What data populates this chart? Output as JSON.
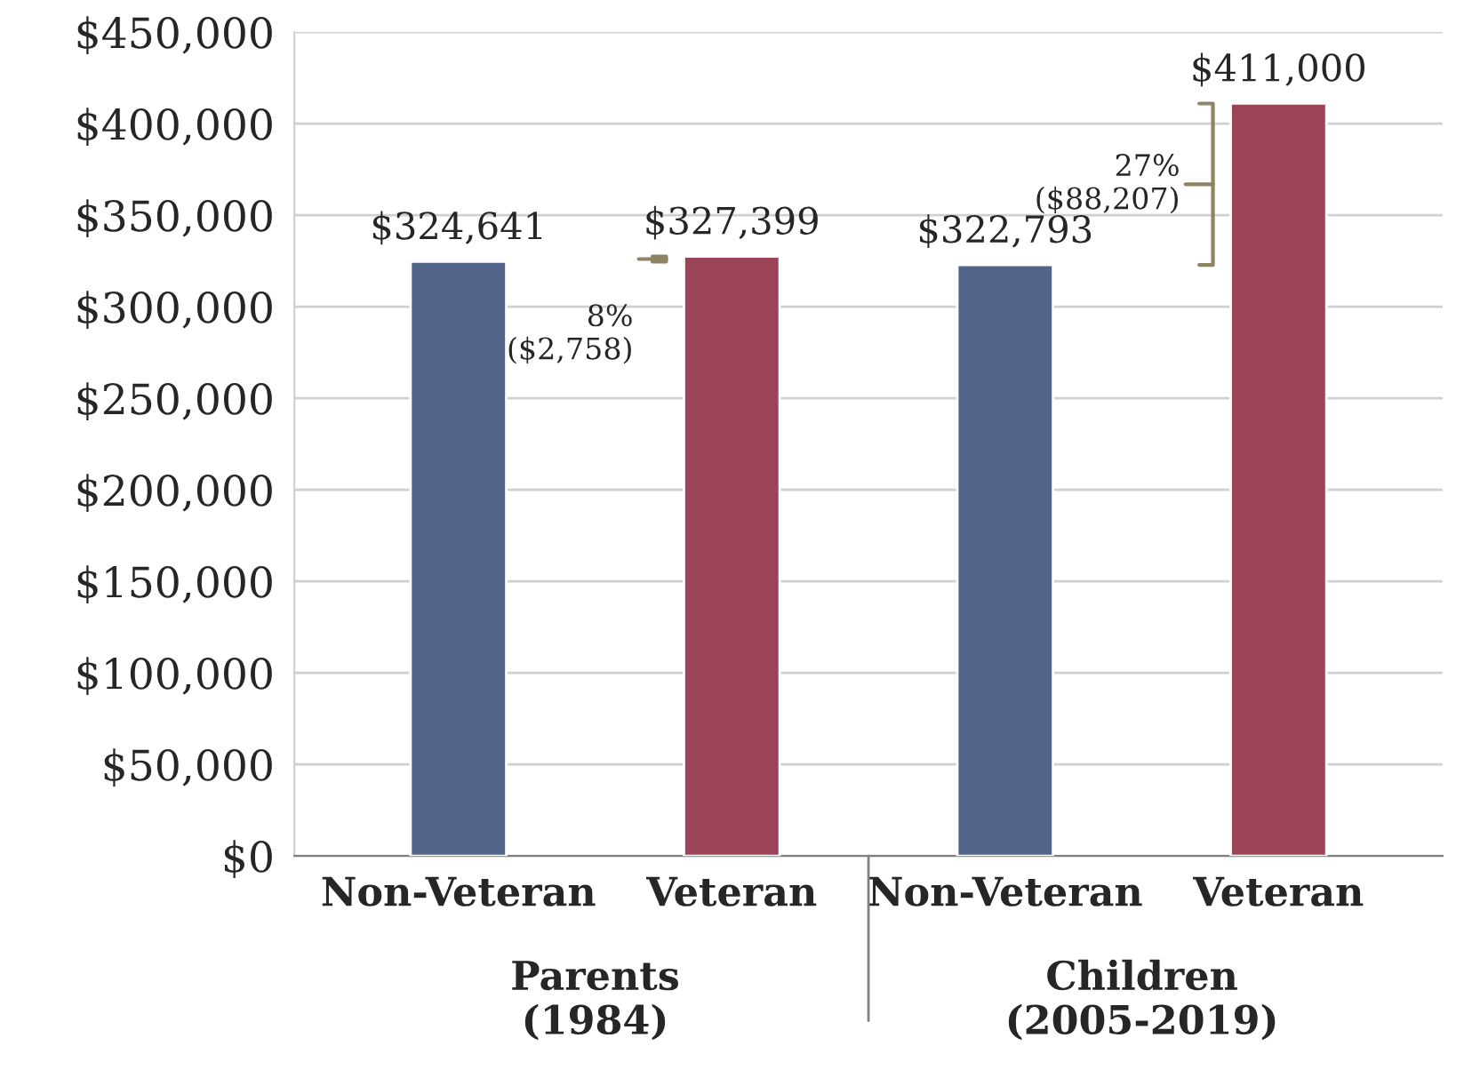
{
  "chart_data": {
    "type": "bar",
    "categories": [
      "Non-Veteran",
      "Veteran",
      "Non-Veteran",
      "Veteran"
    ],
    "values": [
      324641,
      327399,
      322793,
      411000
    ],
    "colors": [
      "#52648a",
      "#9b4457",
      "#52648a",
      "#9b4457"
    ],
    "value_labels": [
      "$324,641",
      "$327,399",
      "$322,793",
      "$411,000"
    ],
    "ylim": [
      0,
      450000
    ],
    "yticks": [
      {
        "value": 0,
        "label": "$0"
      },
      {
        "value": 50000,
        "label": "$50,000"
      },
      {
        "value": 100000,
        "label": "$100,000"
      },
      {
        "value": 150000,
        "label": "$150,000"
      },
      {
        "value": 200000,
        "label": "$200,000"
      },
      {
        "value": 250000,
        "label": "$250,000"
      },
      {
        "value": 300000,
        "label": "$300,000"
      },
      {
        "value": 350000,
        "label": "$350,000"
      },
      {
        "value": 400000,
        "label": "$400,000"
      },
      {
        "value": 450000,
        "label": "$450,000"
      }
    ],
    "grid": "y",
    "annotations": [
      "8%\n($2,758)",
      "27%\n($88,207)",
      "Parents\n(1984)",
      "Children\n(2005-2019)"
    ]
  }
}
